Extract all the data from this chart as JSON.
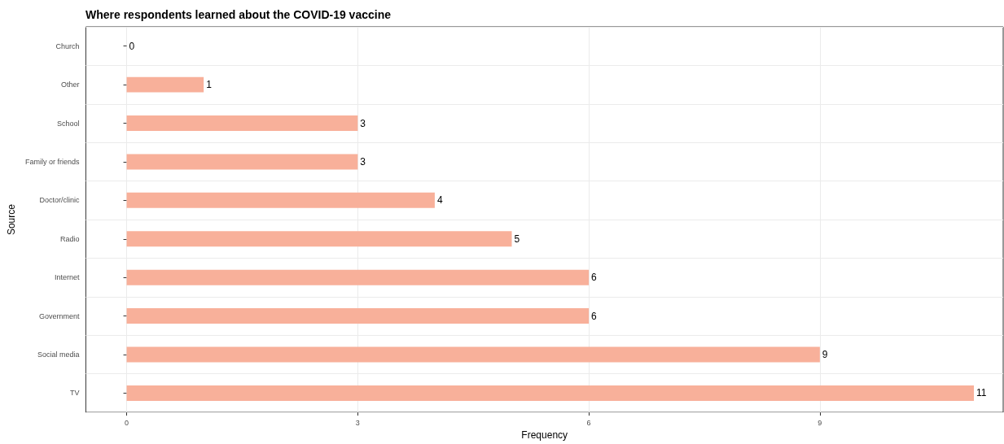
{
  "chart_data": {
    "type": "bar",
    "orientation": "horizontal",
    "title": "Where respondents learned about the COVID-19 vaccine",
    "xlabel": "Frequency",
    "ylabel": "Source",
    "categories": [
      "Church",
      "Other",
      "School",
      "Family or friends",
      "Doctor/clinic",
      "Radio",
      "Internet",
      "Government",
      "Social media",
      "TV"
    ],
    "values": [
      0,
      1,
      3,
      3,
      4,
      5,
      6,
      6,
      9,
      11
    ],
    "color": "#f8b09a",
    "xlim": [
      -0.53,
      11.38
    ],
    "xticks": [
      0,
      3,
      6,
      9
    ],
    "grid": true,
    "data_labels": true
  }
}
